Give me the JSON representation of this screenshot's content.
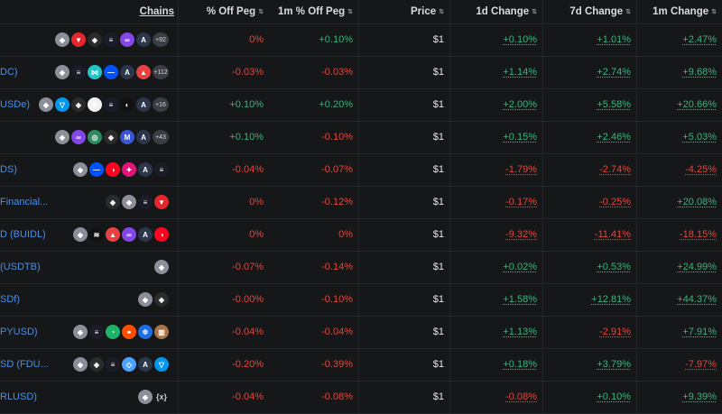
{
  "header": {
    "chains": "Chains",
    "off_peg": "% Off Peg",
    "off_peg_1m": "1m % Off Peg",
    "price": "Price",
    "change_1d": "1d Change",
    "change_7d": "7d Change",
    "change_1m": "1m Change"
  },
  "rows": [
    {
      "name": "",
      "chains": [
        {
          "n": "ethereum-icon",
          "bg": "#8a8f99",
          "g": "◆"
        },
        {
          "n": "tron-icon",
          "bg": "#e5262c",
          "g": "▼"
        },
        {
          "n": "bnb-icon",
          "bg": "#2b2b2b",
          "g": "◈"
        },
        {
          "n": "solana-icon",
          "bg": "#1c1c28",
          "g": "≡"
        },
        {
          "n": "polygon-icon",
          "bg": "#8247e5",
          "g": "∞"
        },
        {
          "n": "arbitrum-icon",
          "bg": "#2d374b",
          "g": "A"
        }
      ],
      "more": "+92",
      "off_peg": "0%",
      "off_peg_1m": "+0.10%",
      "price": "$1",
      "d1": "+0.10%",
      "d7": "+1.01%",
      "m1": "+2.47%"
    },
    {
      "name": "DC)",
      "chains": [
        {
          "n": "ethereum-icon",
          "bg": "#8a8f99",
          "g": "◆"
        },
        {
          "n": "solana-icon",
          "bg": "#1c1c28",
          "g": "≡"
        },
        {
          "n": "sui-icon",
          "bg": "#22c3c9",
          "g": "⋈"
        },
        {
          "n": "base-icon",
          "bg": "#0052ff",
          "g": "—"
        },
        {
          "n": "arbitrum-icon",
          "bg": "#2d374b",
          "g": "A"
        },
        {
          "n": "avalanche-icon",
          "bg": "#e84142",
          "g": "▲"
        }
      ],
      "more": "+112",
      "off_peg": "-0.03%",
      "off_peg_1m": "-0.03%",
      "price": "$1",
      "d1": "+1.14%",
      "d7": "+2.74%",
      "m1": "+9.68%"
    },
    {
      "name": "USDe)",
      "chains": [
        {
          "n": "ethereum-icon",
          "bg": "#8a8f99",
          "g": "◆"
        },
        {
          "n": "ton-icon",
          "bg": "#0098ea",
          "g": "▽"
        },
        {
          "n": "bnb-icon",
          "bg": "#2b2b2b",
          "g": "◈"
        },
        {
          "n": "ethena-icon",
          "bg": "#f2f2f2",
          "g": "✳"
        },
        {
          "n": "solana-icon",
          "bg": "#1c1c28",
          "g": "≡"
        },
        {
          "n": "blast-icon",
          "bg": "#111111",
          "g": "◐"
        },
        {
          "n": "arbitrum-icon",
          "bg": "#2d374b",
          "g": "A"
        }
      ],
      "more": "+16",
      "off_peg": "+0.10%",
      "off_peg_1m": "+0.20%",
      "price": "$1",
      "d1": "+2.00%",
      "d7": "+5.58%",
      "m1": "+20.66%"
    },
    {
      "name": "",
      "chains": [
        {
          "n": "ethereum-icon",
          "bg": "#8a8f99",
          "g": "◆"
        },
        {
          "n": "polygon-icon",
          "bg": "#8247e5",
          "g": "∞"
        },
        {
          "n": "gnosis-icon",
          "bg": "#2f8a5f",
          "g": "◎"
        },
        {
          "n": "bnb-icon",
          "bg": "#2b2b2b",
          "g": "◈"
        },
        {
          "n": "metis-icon",
          "bg": "#3a56d6",
          "g": "M"
        },
        {
          "n": "arbitrum-icon",
          "bg": "#2d374b",
          "g": "A"
        }
      ],
      "more": "+43",
      "off_peg": "+0.10%",
      "off_peg_1m": "-0.10%",
      "price": "$1",
      "d1": "+0.15%",
      "d7": "+2.46%",
      "m1": "+5.03%"
    },
    {
      "name": "DS)",
      "chains": [
        {
          "n": "ethereum-icon",
          "bg": "#8a8f99",
          "g": "◆"
        },
        {
          "n": "base-icon",
          "bg": "#0052ff",
          "g": "—"
        },
        {
          "n": "optimism-icon",
          "bg": "#ff0420",
          "g": "◑"
        },
        {
          "n": "zora-icon",
          "bg": "#e0157a",
          "g": "✦"
        },
        {
          "n": "arbitrum-icon",
          "bg": "#2d374b",
          "g": "A"
        },
        {
          "n": "solana-icon",
          "bg": "#1c1c28",
          "g": "≡"
        }
      ],
      "more": "",
      "off_peg": "-0.04%",
      "off_peg_1m": "-0.07%",
      "price": "$1",
      "d1": "-1.79%",
      "d7": "-2.74%",
      "m1": "-4.25%"
    },
    {
      "name": "Financial...",
      "chains": [
        {
          "n": "bnb-icon",
          "bg": "#2b2b2b",
          "g": "◈"
        },
        {
          "n": "ethereum-icon",
          "bg": "#8a8f99",
          "g": "◆"
        },
        {
          "n": "solana-icon",
          "bg": "#1c1c28",
          "g": "≡"
        },
        {
          "n": "tron-icon",
          "bg": "#e5262c",
          "g": "▼"
        }
      ],
      "more": "",
      "off_peg": "0%",
      "off_peg_1m": "-0.12%",
      "price": "$1",
      "d1": "-0.17%",
      "d7": "-0.25%",
      "m1": "+20.08%"
    },
    {
      "name": "D (BUIDL)",
      "chains": [
        {
          "n": "ethereum-icon",
          "bg": "#8a8f99",
          "g": "◆"
        },
        {
          "n": "aptos-icon",
          "bg": "#111111",
          "g": "≋"
        },
        {
          "n": "avalanche-icon",
          "bg": "#e84142",
          "g": "▲"
        },
        {
          "n": "polygon-icon",
          "bg": "#8247e5",
          "g": "∞"
        },
        {
          "n": "arbitrum-icon",
          "bg": "#2d374b",
          "g": "A"
        },
        {
          "n": "optimism-icon",
          "bg": "#ff0420",
          "g": "◑"
        }
      ],
      "more": "",
      "off_peg": "0%",
      "off_peg_1m": "0%",
      "price": "$1",
      "d1": "-9.32%",
      "d7": "-11.41%",
      "m1": "-18.15%"
    },
    {
      "name": "(USDTB)",
      "chains": [
        {
          "n": "ethereum-icon",
          "bg": "#8a8f99",
          "g": "◆"
        }
      ],
      "more": "",
      "off_peg": "-0.07%",
      "off_peg_1m": "-0.14%",
      "price": "$1",
      "d1": "+0.02%",
      "d7": "+0.53%",
      "m1": "+24.99%"
    },
    {
      "name": "SDf)",
      "chains": [
        {
          "n": "ethereum-icon",
          "bg": "#8a8f99",
          "g": "◆"
        },
        {
          "n": "bnb-icon",
          "bg": "#2b2b2b",
          "g": "◈"
        }
      ],
      "more": "",
      "off_peg": "-0.00%",
      "off_peg_1m": "-0.10%",
      "price": "$1",
      "d1": "+1.58%",
      "d7": "+12.81%",
      "m1": "+44.37%"
    },
    {
      "name": "PYUSD)",
      "chains": [
        {
          "n": "ethereum-icon",
          "bg": "#8a8f99",
          "g": "◆"
        },
        {
          "n": "solana-icon",
          "bg": "#1c1c28",
          "g": "≡"
        },
        {
          "n": "sei-icon",
          "bg": "#1db36b",
          "g": "◔"
        },
        {
          "n": "fantom-icon",
          "bg": "#ff4d00",
          "g": "⚭"
        },
        {
          "n": "celo-icon",
          "bg": "#1d6ee0",
          "g": "✲"
        },
        {
          "n": "near-icon",
          "bg": "#a87346",
          "g": "▥"
        }
      ],
      "more": "",
      "off_peg": "-0.04%",
      "off_peg_1m": "-0.04%",
      "price": "$1",
      "d1": "+1.13%",
      "d7": "-2.91%",
      "m1": "+7.91%"
    },
    {
      "name": "SD (FDU...",
      "chains": [
        {
          "n": "ethereum-icon",
          "bg": "#8a8f99",
          "g": "◆"
        },
        {
          "n": "bnb-icon",
          "bg": "#2b2b2b",
          "g": "◈"
        },
        {
          "n": "solana-icon",
          "bg": "#1c1c28",
          "g": "≡"
        },
        {
          "n": "sui-icon",
          "bg": "#4da2ff",
          "g": "◇"
        },
        {
          "n": "arbitrum-icon",
          "bg": "#2d374b",
          "g": "A"
        },
        {
          "n": "ton-icon",
          "bg": "#0098ea",
          "g": "▽"
        }
      ],
      "more": "",
      "off_peg": "-0.20%",
      "off_peg_1m": "-0.39%",
      "price": "$1",
      "d1": "+0.18%",
      "d7": "+3.79%",
      "m1": "-7.97%"
    },
    {
      "name": "RLUSD)",
      "chains": [
        {
          "n": "ethereum-icon",
          "bg": "#8a8f99",
          "g": "◆"
        },
        {
          "n": "xrpl-icon",
          "bg": "transparent",
          "g": "{x}"
        }
      ],
      "more": "",
      "off_peg": "-0.04%",
      "off_peg_1m": "-0.08%",
      "price": "$1",
      "d1": "-0.08%",
      "d7": "+0.10%",
      "m1": "+9.39%"
    }
  ]
}
